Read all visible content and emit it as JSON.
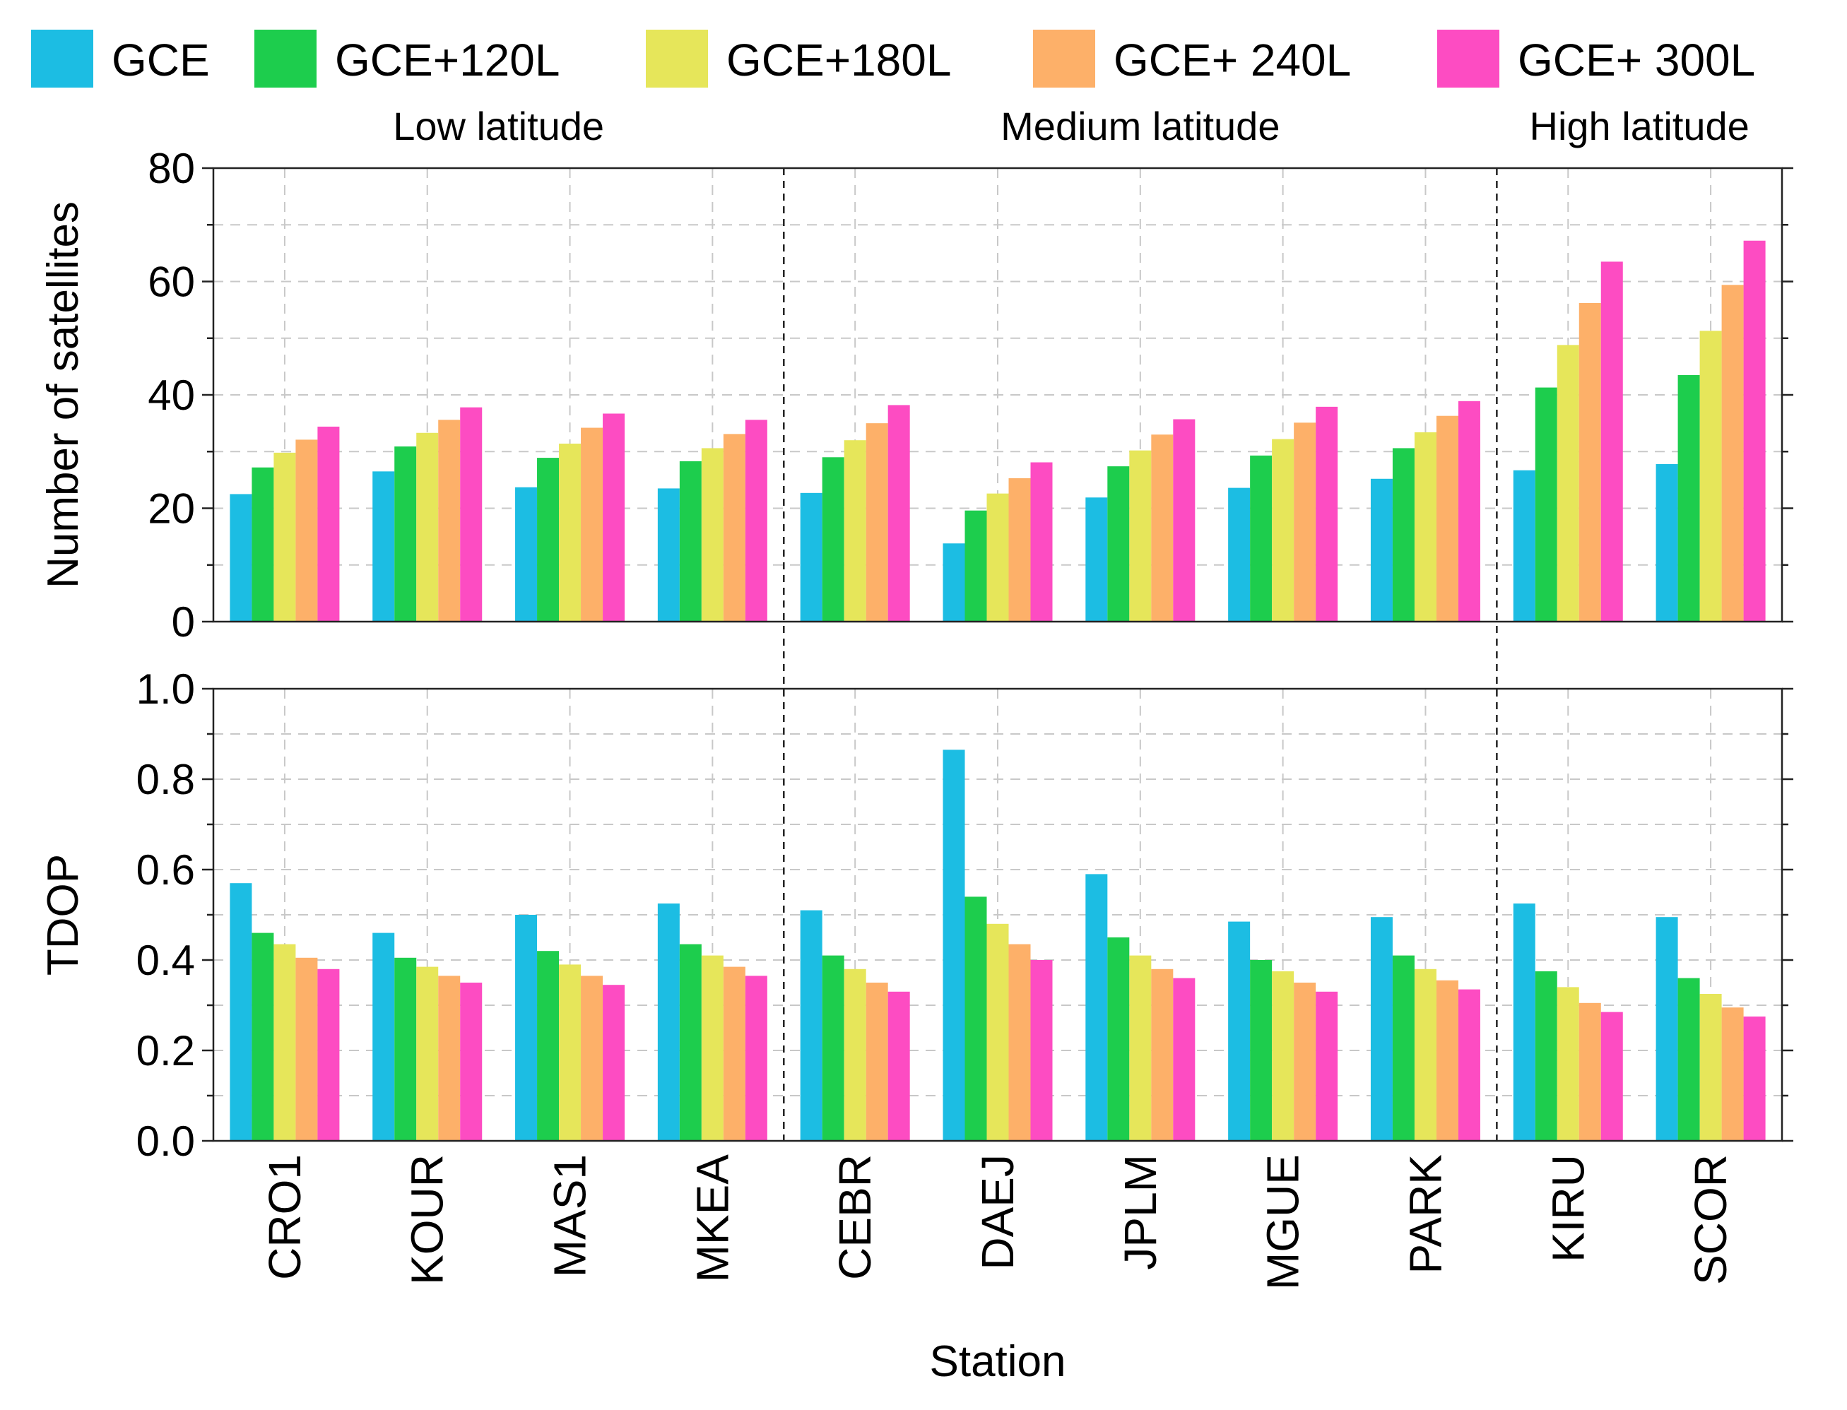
{
  "chart_data": {
    "type": "bar",
    "legend_position": "top",
    "grid": true,
    "xlabel": "Station",
    "categories": [
      "CRO1",
      "KOUR",
      "MAS1",
      "MKEA",
      "CEBR",
      "DAEJ",
      "JPLM",
      "MGUE",
      "PARK",
      "KIRU",
      "SCOR"
    ],
    "colors": [
      "#1cbde3",
      "#1dcd4d",
      "#e6e65a",
      "#fdb069",
      "#fd4cc2"
    ],
    "legend": [
      "GCE",
      "GCE+120L",
      "GCE+180L",
      "GCE+ 240L",
      "GCE+ 300L"
    ],
    "region_labels": [
      {
        "text": "Low latitude",
        "categories": [
          "CRO1",
          "KOUR",
          "MAS1",
          "MKEA"
        ]
      },
      {
        "text": "Medium latitude",
        "categories": [
          "CEBR",
          "DAEJ",
          "JPLM",
          "MGUE",
          "PARK"
        ]
      },
      {
        "text": "High latitude",
        "categories": [
          "KIRU",
          "SCOR"
        ]
      }
    ],
    "panels": [
      {
        "ylabel": "Number of satellites",
        "ylim": [
          0,
          80
        ],
        "yticks": [
          "0",
          "20",
          "40",
          "60",
          "80"
        ],
        "ytick_values": [
          0,
          20,
          40,
          60,
          80
        ],
        "series": [
          {
            "name": "GCE",
            "values": [
              22.5,
              26.5,
              23.7,
              23.5,
              22.7,
              13.8,
              21.9,
              23.6,
              25.2,
              26.7,
              27.8
            ]
          },
          {
            "name": "GCE+120L",
            "values": [
              27.2,
              30.9,
              28.9,
              28.3,
              29.0,
              19.6,
              27.4,
              29.3,
              30.6,
              41.3,
              43.5
            ]
          },
          {
            "name": "GCE+180L",
            "values": [
              29.8,
              33.3,
              31.4,
              30.6,
              32.0,
              22.6,
              30.2,
              32.2,
              33.4,
              48.8,
              51.3
            ]
          },
          {
            "name": "GCE+ 240L",
            "values": [
              32.1,
              35.6,
              34.2,
              33.1,
              35.0,
              25.3,
              33.0,
              35.1,
              36.3,
              56.2,
              59.4
            ]
          },
          {
            "name": "GCE+ 300L",
            "values": [
              34.4,
              37.8,
              36.7,
              35.6,
              38.2,
              28.1,
              35.7,
              37.9,
              38.9,
              63.5,
              67.2
            ]
          }
        ]
      },
      {
        "ylabel": "TDOP",
        "ylim": [
          0,
          1.0
        ],
        "yticks": [
          "0.0",
          "0.2",
          "0.4",
          "0.6",
          "0.8",
          "1.0"
        ],
        "ytick_values": [
          0,
          0.2,
          0.4,
          0.6,
          0.8,
          1.0
        ],
        "series": [
          {
            "name": "GCE",
            "values": [
              0.57,
              0.46,
              0.5,
              0.525,
              0.51,
              0.865,
              0.59,
              0.485,
              0.495,
              0.525,
              0.495
            ]
          },
          {
            "name": "GCE+120L",
            "values": [
              0.46,
              0.405,
              0.42,
              0.435,
              0.41,
              0.54,
              0.45,
              0.4,
              0.41,
              0.375,
              0.36
            ]
          },
          {
            "name": "GCE+180L",
            "values": [
              0.435,
              0.385,
              0.39,
              0.41,
              0.38,
              0.48,
              0.41,
              0.375,
              0.38,
              0.34,
              0.325
            ]
          },
          {
            "name": "GCE+ 240L",
            "values": [
              0.405,
              0.365,
              0.365,
              0.385,
              0.35,
              0.435,
              0.38,
              0.35,
              0.355,
              0.305,
              0.295
            ]
          },
          {
            "name": "GCE+ 300L",
            "values": [
              0.38,
              0.35,
              0.345,
              0.365,
              0.33,
              0.4,
              0.36,
              0.33,
              0.335,
              0.285,
              0.275
            ]
          }
        ]
      }
    ]
  }
}
